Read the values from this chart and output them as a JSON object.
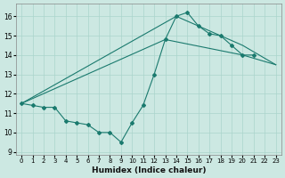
{
  "bg_color": "#cce8e2",
  "grid_color": "#aad4cc",
  "line_color": "#1a7a6e",
  "xlabel": "Humidex (Indice chaleur)",
  "xlim_min": -0.5,
  "xlim_max": 23.5,
  "ylim_min": 8.85,
  "ylim_max": 16.65,
  "xticks": [
    0,
    1,
    2,
    3,
    4,
    5,
    6,
    7,
    8,
    9,
    10,
    11,
    12,
    13,
    14,
    15,
    16,
    17,
    18,
    19,
    20,
    21,
    22,
    23
  ],
  "yticks": [
    9,
    10,
    11,
    12,
    13,
    14,
    15,
    16
  ],
  "main_x": [
    0,
    1,
    2,
    3,
    4,
    5,
    6,
    7,
    8,
    9,
    10,
    11,
    12,
    13,
    14,
    15,
    16,
    17,
    18,
    19,
    20,
    21
  ],
  "main_y": [
    11.5,
    11.4,
    11.3,
    11.3,
    10.6,
    10.5,
    10.4,
    10.0,
    10.0,
    9.5,
    10.5,
    11.4,
    13.0,
    14.8,
    16.0,
    16.2,
    15.5,
    15.1,
    15.0,
    14.5,
    14.0,
    14.0
  ],
  "line2_x": [
    0,
    14,
    20,
    23
  ],
  "line2_y": [
    11.5,
    16.0,
    14.5,
    13.5
  ],
  "line3_x": [
    0,
    13,
    20,
    23
  ],
  "line3_y": [
    11.5,
    14.8,
    14.0,
    13.5
  ]
}
